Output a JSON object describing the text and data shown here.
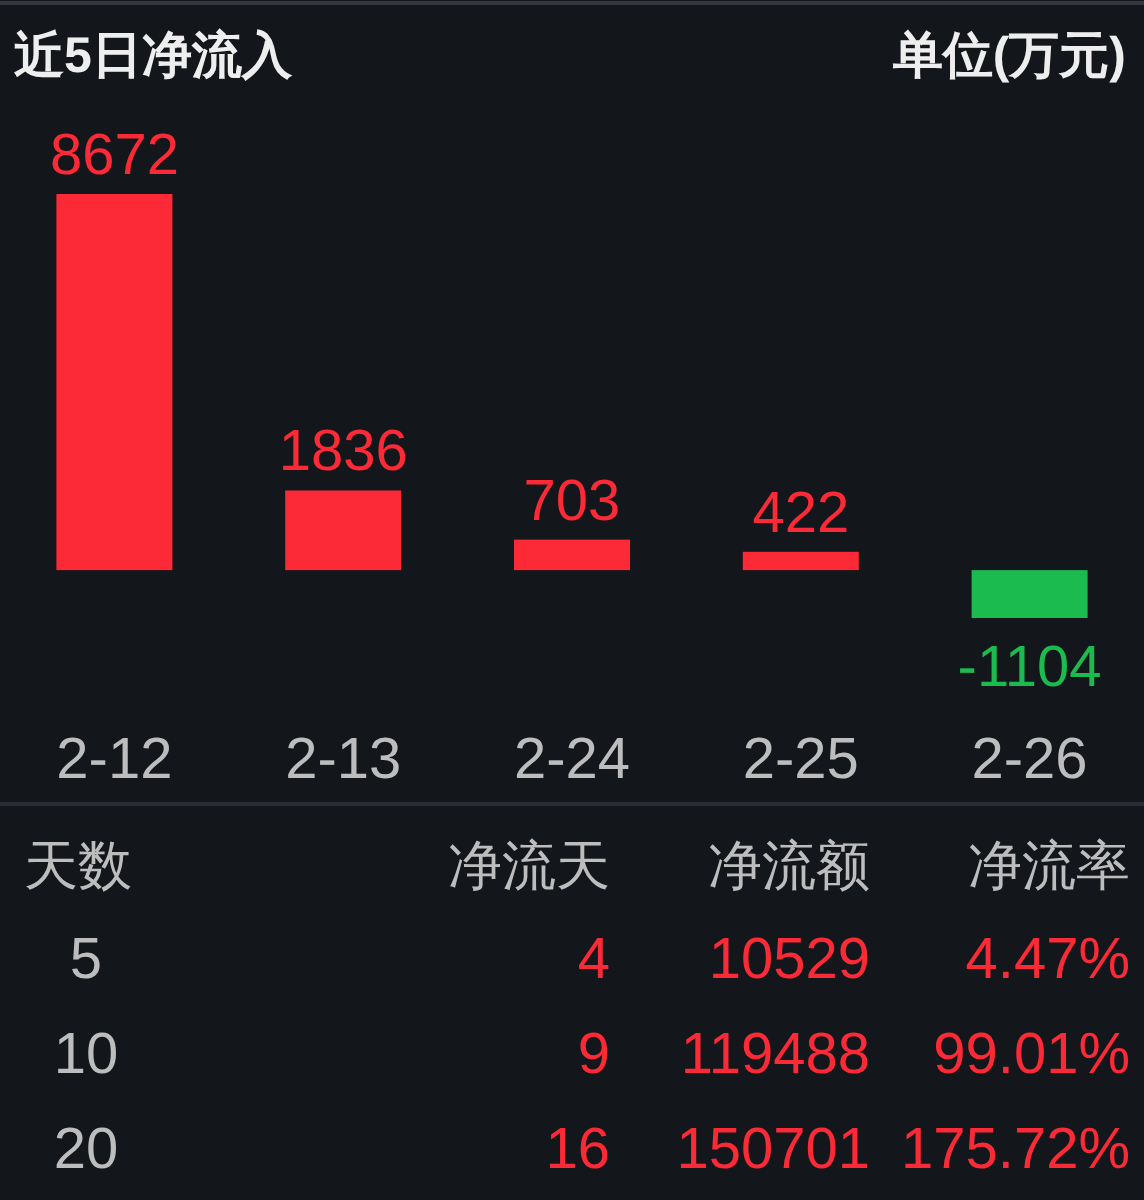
{
  "chart_data": [
    {
      "type": "bar",
      "title": "近5日净流入",
      "annotations": [
        "单位(万元)"
      ],
      "categories": [
        "2-12",
        "2-13",
        "2-24",
        "2-25",
        "2-26"
      ],
      "values": [
        8672,
        1836,
        703,
        422,
        -1104
      ],
      "colors": [
        "#fc2a36",
        "#fc2a36",
        "#fc2a36",
        "#fc2a36",
        "#1bbb4f"
      ],
      "data_labels": true
    },
    {
      "type": "other",
      "categories": [
        "天数",
        "净流天",
        "净流额",
        "净流率"
      ],
      "annotations": [
        "5",
        "4",
        "10529",
        "4.47%",
        "10",
        "9",
        "119488",
        "99.01%",
        "20",
        "16",
        "150701",
        "175.72%"
      ],
      "colors": [
        "#bdbdbd",
        "#fc2a36",
        "#fc2a36",
        "#fc2a36"
      ]
    }
  ]
}
